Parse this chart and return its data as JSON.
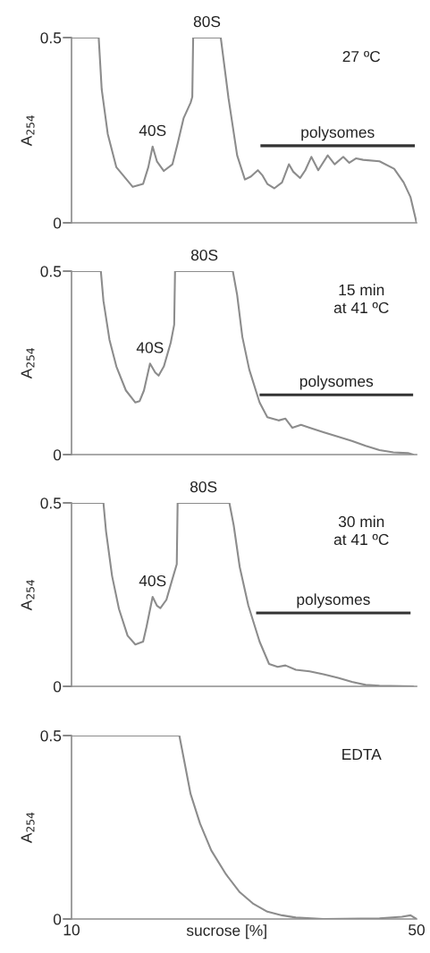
{
  "chart_data": [
    {
      "type": "line",
      "ylabel": "A$_{254}$",
      "xlim": [
        10,
        50
      ],
      "ylim": [
        0,
        0.5
      ],
      "yticks": [
        0,
        0.5
      ],
      "tick_labels": "y",
      "grid": false,
      "legend": false,
      "marker": "none",
      "line_style": "solid",
      "series": [
        {
          "color": "#8c8c8c",
          "x": [
            10,
            13.15,
            13.5,
            14.2,
            15.2,
            17.1,
            18.3,
            18.9,
            19.4,
            19.9,
            20.7,
            21.7,
            22.3,
            23.0,
            23.8,
            24.0,
            24.1,
            27.3,
            28.2,
            29.2,
            30.1,
            30.8,
            31.6,
            32.1,
            32.7,
            33.5,
            34.4,
            35.2,
            35.7,
            36.5,
            37.1,
            37.8,
            38.6,
            39.7,
            40.5,
            41.5,
            42.2,
            43.0,
            43.8,
            45.7,
            47.4,
            48.5,
            49.3,
            50
          ],
          "values": [
            0.5,
            0.5,
            0.36,
            0.24,
            0.15,
            0.097,
            0.105,
            0.15,
            0.206,
            0.166,
            0.14,
            0.158,
            0.214,
            0.283,
            0.324,
            0.34,
            0.5,
            0.5,
            0.336,
            0.182,
            0.117,
            0.125,
            0.142,
            0.129,
            0.105,
            0.093,
            0.109,
            0.158,
            0.138,
            0.121,
            0.142,
            0.178,
            0.142,
            0.182,
            0.158,
            0.178,
            0.162,
            0.174,
            0.17,
            0.166,
            0.146,
            0.109,
            0.069,
            0
          ]
        },
        {
          "type": "line",
          "name": "polysomes",
          "color": "#333333",
          "x": [
            31.9,
            49.8
          ],
          "values": [
            0.208,
            0.208
          ]
        }
      ],
      "annotations": [
        {
          "text": "40S",
          "x": 19.4,
          "y": 0.206
        },
        {
          "text": "80S",
          "x": 25.7,
          "y": 0.5
        },
        "27 ºC"
      ]
    },
    {
      "type": "line",
      "ylabel": "A$_{254}$",
      "xlim": [
        10,
        50
      ],
      "ylim": [
        0,
        0.5
      ],
      "yticks": [
        0,
        0.5
      ],
      "tick_labels": "y",
      "grid": false,
      "legend": false,
      "marker": "none",
      "line_style": "solid",
      "series": [
        {
          "color": "#8c8c8c",
          "x": [
            10,
            13.4,
            13.7,
            14.4,
            15.2,
            16.3,
            17.4,
            17.9,
            18.4,
            19.1,
            19.7,
            20.1,
            20.7,
            21.5,
            21.9,
            22.0,
            28.7,
            29.2,
            29.8,
            30.6,
            31.8,
            32.7,
            34.0,
            34.8,
            35.6,
            36.6,
            37.6,
            39.2,
            40.9,
            42.5,
            44.1,
            45.7,
            47.3,
            49.0,
            49.6
          ],
          "values": [
            0.5,
            0.5,
            0.419,
            0.313,
            0.24,
            0.175,
            0.142,
            0.146,
            0.175,
            0.248,
            0.224,
            0.215,
            0.24,
            0.305,
            0.354,
            0.5,
            0.5,
            0.435,
            0.321,
            0.232,
            0.142,
            0.102,
            0.093,
            0.098,
            0.073,
            0.081,
            0.073,
            0.061,
            0.049,
            0.037,
            0.024,
            0.012,
            0.006,
            0.004,
            0
          ]
        },
        {
          "type": "line",
          "name": "polysomes",
          "color": "#333333",
          "x": [
            31.8,
            49.6
          ],
          "values": [
            0.163,
            0.163
          ]
        }
      ],
      "annotations": [
        {
          "text": "40S",
          "x": 19.1,
          "y": 0.248
        },
        {
          "text": "80S",
          "x": 25.4,
          "y": 0.5
        },
        "15 min\nat 41 ºC"
      ]
    },
    {
      "type": "line",
      "ylabel": "A$_{254}$",
      "xlim": [
        10,
        50
      ],
      "ylim": [
        0,
        0.5
      ],
      "yticks": [
        0,
        0.5
      ],
      "tick_labels": "y",
      "grid": false,
      "legend": false,
      "marker": "none",
      "line_style": "solid",
      "series": [
        {
          "color": "#8c8c8c",
          "x": [
            10,
            13.7,
            14.0,
            14.7,
            15.5,
            16.5,
            17.4,
            18.3,
            18.7,
            19.4,
            19.9,
            20.3,
            21.0,
            21.7,
            22.2,
            22.3,
            28.3,
            28.8,
            29.5,
            30.5,
            31.8,
            32.9,
            33.9,
            34.8,
            36.0,
            37.6,
            39.2,
            40.9,
            42.5,
            44.1,
            45.7,
            49.6
          ],
          "values": [
            0.5,
            0.5,
            0.423,
            0.301,
            0.211,
            0.138,
            0.114,
            0.122,
            0.163,
            0.244,
            0.22,
            0.213,
            0.236,
            0.293,
            0.333,
            0.5,
            0.5,
            0.439,
            0.325,
            0.22,
            0.122,
            0.061,
            0.053,
            0.057,
            0.045,
            0.041,
            0.033,
            0.023,
            0.012,
            0.004,
            0.002,
            0
          ]
        },
        {
          "type": "line",
          "name": "polysomes",
          "color": "#333333",
          "x": [
            31.4,
            49.3
          ],
          "values": [
            0.2,
            0.2
          ]
        }
      ],
      "annotations": [
        {
          "text": "40S",
          "x": 19.4,
          "y": 0.244
        },
        {
          "text": "80S",
          "x": 25.3,
          "y": 0.5
        },
        "30 min\nat 41 ºC"
      ]
    },
    {
      "type": "line",
      "ylabel": "A$_{254}$",
      "xlabel": "sucrose [%]",
      "xlim": [
        10,
        50
      ],
      "xticks": [
        10,
        50
      ],
      "ylim": [
        0,
        0.5
      ],
      "yticks": [
        0,
        0.5
      ],
      "grid": false,
      "legend": false,
      "marker": "none",
      "line_style": "solid",
      "series": [
        {
          "color": "#8c8c8c",
          "x": [
            10,
            22.5,
            23.0,
            23.8,
            24.9,
            26.2,
            27.9,
            29.5,
            31.1,
            32.7,
            34.4,
            36.0,
            39.2,
            45.7,
            48.3,
            49.3,
            50
          ],
          "values": [
            0.5,
            0.5,
            0.439,
            0.341,
            0.26,
            0.187,
            0.122,
            0.073,
            0.041,
            0.02,
            0.01,
            0.004,
            0,
            0.002,
            0.006,
            0.01,
            0
          ]
        }
      ],
      "annotations": [
        "EDTA"
      ]
    }
  ]
}
